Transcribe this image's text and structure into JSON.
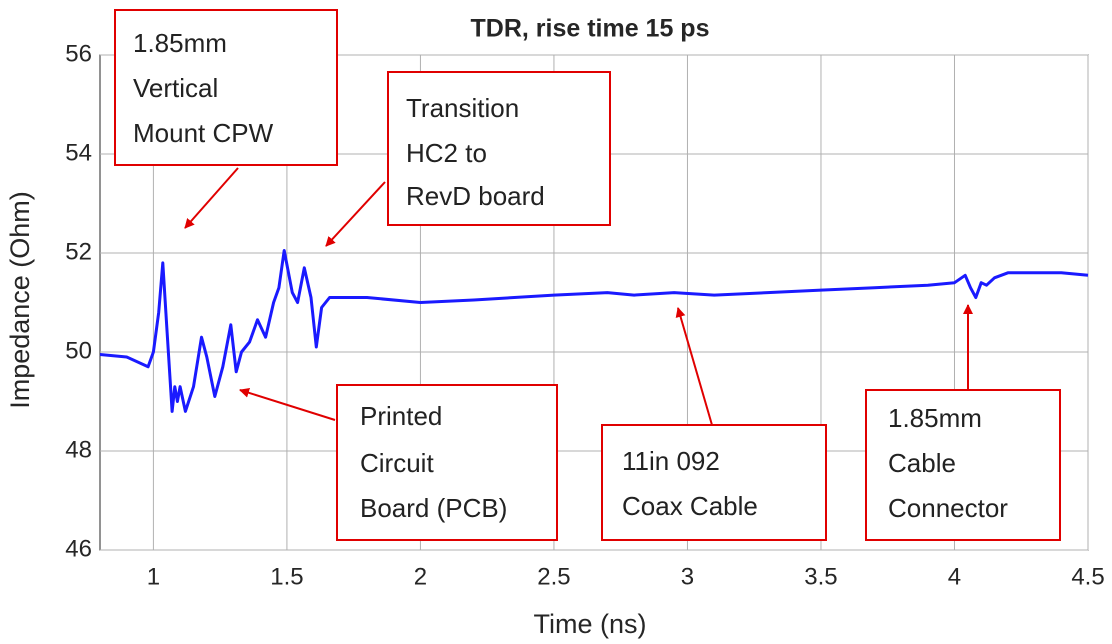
{
  "chart_data": {
    "type": "line",
    "title": "TDR, rise time 15 ps",
    "xlabel": "Time (ns)",
    "ylabel": "Impedance (Ohm)",
    "xlim": [
      0.8,
      4.5
    ],
    "ylim": [
      46,
      56
    ],
    "xticks": [
      1,
      1.5,
      2,
      2.5,
      3,
      3.5,
      4,
      4.5
    ],
    "yticks": [
      46,
      48,
      50,
      52,
      54,
      56
    ],
    "grid": true,
    "x": [
      0.8,
      0.9,
      0.98,
      1.0,
      1.02,
      1.035,
      1.05,
      1.07,
      1.08,
      1.09,
      1.1,
      1.12,
      1.15,
      1.18,
      1.2,
      1.23,
      1.26,
      1.29,
      1.31,
      1.33,
      1.36,
      1.39,
      1.42,
      1.45,
      1.47,
      1.49,
      1.52,
      1.54,
      1.565,
      1.59,
      1.61,
      1.63,
      1.66,
      1.8,
      2.0,
      2.2,
      2.5,
      2.7,
      2.8,
      2.95,
      3.1,
      3.3,
      3.5,
      3.7,
      3.9,
      4.0,
      4.04,
      4.06,
      4.08,
      4.1,
      4.12,
      4.15,
      4.2,
      4.4,
      4.5
    ],
    "series": [
      {
        "color": "#1a1aff",
        "values": [
          49.95,
          49.9,
          49.7,
          50.0,
          50.8,
          51.8,
          50.5,
          48.8,
          49.3,
          49.0,
          49.3,
          48.8,
          49.3,
          50.3,
          49.9,
          49.1,
          49.7,
          50.55,
          49.6,
          50.0,
          50.2,
          50.65,
          50.3,
          51.0,
          51.3,
          52.05,
          51.2,
          51.0,
          51.7,
          51.1,
          50.1,
          50.9,
          51.1,
          51.1,
          51.0,
          51.05,
          51.15,
          51.2,
          51.15,
          51.2,
          51.15,
          51.2,
          51.25,
          51.3,
          51.35,
          51.4,
          51.55,
          51.3,
          51.1,
          51.4,
          51.35,
          51.5,
          51.6,
          51.6,
          51.55
        ]
      }
    ],
    "annotations": [
      {
        "lines": [
          "1.85mm",
          "Vertical",
          "Mount CPW"
        ]
      },
      {
        "lines": [
          "Transition",
          "HC2 to",
          "RevD board"
        ]
      },
      {
        "lines": [
          "Printed",
          "Circuit",
          "Board (PCB)"
        ]
      },
      {
        "lines": [
          "11in 092",
          "Coax Cable"
        ]
      },
      {
        "lines": [
          "1.85mm",
          "Cable",
          "Connector"
        ]
      }
    ]
  }
}
